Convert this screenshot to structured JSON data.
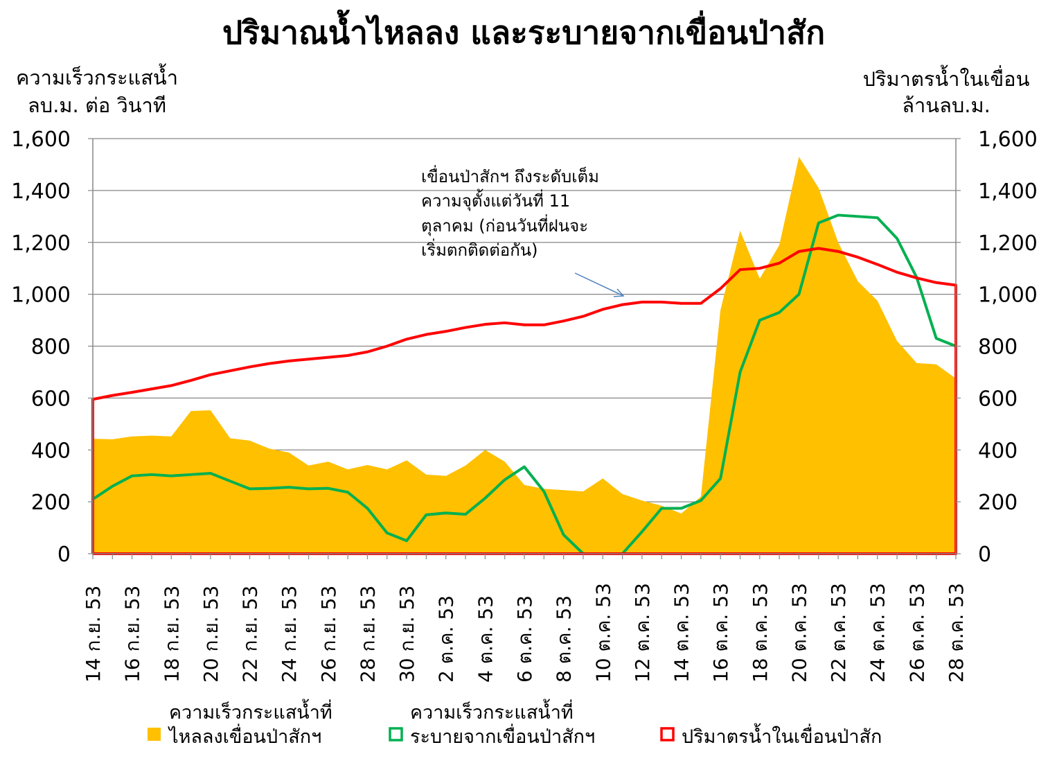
{
  "chart_data": {
    "type": "area+line",
    "title": "ปริมาณน้ำไหลลง และระบายจากเขื่อนป่าสัก",
    "y_left_label": [
      "ความเร็วกระแสน้ำ",
      "ลบ.ม. ต่อ วินาที"
    ],
    "y_right_label": [
      "ปริมาตรน้ำในเขื่อน",
      "ล้านลบ.ม."
    ],
    "ylim": [
      0,
      1600
    ],
    "y_ticks": [
      0,
      200,
      400,
      600,
      800,
      1000,
      1200,
      1400,
      1600
    ],
    "y_tick_labels": [
      "0",
      "200",
      "400",
      "600",
      "800",
      "1,000",
      "1,200",
      "1,400",
      "1,600"
    ],
    "x": [
      "14 ก.ย. 53",
      "15 ก.ย. 53",
      "16 ก.ย. 53",
      "17 ก.ย. 53",
      "18 ก.ย. 53",
      "19 ก.ย. 53",
      "20 ก.ย. 53",
      "21 ก.ย. 53",
      "22 ก.ย. 53",
      "23 ก.ย. 53",
      "24 ก.ย. 53",
      "25 ก.ย. 53",
      "26 ก.ย. 53",
      "27 ก.ย. 53",
      "28 ก.ย. 53",
      "29 ก.ย. 53",
      "30 ก.ย. 53",
      "1 ต.ค. 53",
      "2 ต.ค. 53",
      "3 ต.ค. 53",
      "4 ต.ค. 53",
      "5 ต.ค. 53",
      "6 ต.ค. 53",
      "7 ต.ค. 53",
      "8 ต.ค. 53",
      "9 ต.ค. 53",
      "10 ต.ค. 53",
      "11 ต.ค. 53",
      "12 ต.ค. 53",
      "13 ต.ค. 53",
      "14 ต.ค. 53",
      "15 ต.ค. 53",
      "16 ต.ค. 53",
      "17 ต.ค. 53",
      "18 ต.ค. 53",
      "19 ต.ค. 53",
      "20 ต.ค. 53",
      "21 ต.ค. 53",
      "22 ต.ค. 53",
      "23 ต.ค. 53",
      "24 ต.ค. 53",
      "25 ต.ค. 53",
      "26 ต.ค. 53",
      "27 ต.ค. 53",
      "28 ต.ค. 53"
    ],
    "x_tick_labels": [
      "14 ก.ย. 53",
      "16 ก.ย. 53",
      "18 ก.ย. 53",
      "20 ก.ย. 53",
      "22 ก.ย. 53",
      "24 ก.ย. 53",
      "26 ก.ย. 53",
      "28 ก.ย. 53",
      "30 ก.ย. 53",
      "2 ต.ค. 53",
      "4 ต.ค. 53",
      "6 ต.ค. 53",
      "8 ต.ค. 53",
      "10 ต.ค. 53",
      "12 ต.ค. 53",
      "14 ต.ค. 53",
      "16 ต.ค. 53",
      "18 ต.ค. 53",
      "20 ต.ค. 53",
      "22 ต.ค. 53",
      "24 ต.ค. 53",
      "26 ต.ค. 53",
      "28 ต.ค. 53"
    ],
    "series": [
      {
        "name": "ความเร็วกระแสน้ำที่ ไหลลงเขื่อนป่าสักฯ",
        "legend_lines": [
          "ความเร็วกระแสน้ำที่",
          "ไหลลงเขื่อนป่าสักฯ"
        ],
        "type": "area",
        "color": "#FFC000",
        "values": [
          443,
          441,
          452,
          455,
          452,
          550,
          553,
          445,
          436,
          405,
          390,
          340,
          355,
          325,
          342,
          325,
          360,
          305,
          300,
          340,
          400,
          355,
          265,
          250,
          245,
          240,
          290,
          230,
          205,
          185,
          155,
          220,
          940,
          1245,
          1060,
          1190,
          1530,
          1410,
          1200,
          1050,
          975,
          820,
          735,
          730,
          675
        ]
      },
      {
        "name": "ความเร็วกระแสน้ำที่ ระบายจากเขื่อนป่าสักฯ",
        "legend_lines": [
          "ความเร็วกระแสน้ำที่",
          "ระบายจากเขื่อนป่าสักฯ"
        ],
        "type": "line",
        "color": "#00B050",
        "values": [
          210,
          260,
          300,
          305,
          300,
          305,
          310,
          280,
          250,
          252,
          256,
          250,
          252,
          237,
          175,
          80,
          50,
          150,
          157,
          152,
          214,
          285,
          335,
          240,
          73,
          0,
          0,
          0,
          85,
          175,
          175,
          205,
          290,
          700,
          900,
          930,
          1000,
          1275,
          1305,
          1300,
          1295,
          1215,
          1065,
          830,
          800
        ]
      },
      {
        "name": "ปริมาตรน้ำในเขื่อนป่าสัก",
        "legend_lines": [
          "ปริมาตรน้ำในเขื่อนป่าสัก"
        ],
        "type": "line",
        "axis": "right",
        "color": "#FF0000",
        "values": [
          595,
          610,
          622,
          635,
          648,
          668,
          690,
          705,
          720,
          733,
          743,
          750,
          757,
          764,
          778,
          800,
          827,
          845,
          857,
          872,
          884,
          890,
          882,
          882,
          897,
          915,
          942,
          960,
          970,
          970,
          965,
          965,
          1022,
          1095,
          1100,
          1120,
          1165,
          1177,
          1165,
          1143,
          1115,
          1085,
          1063,
          1045,
          1035
        ]
      }
    ],
    "annotation": {
      "lines": [
        "เขื่อนป่าสักฯ ถึงระดับเต็ม",
        "ความจุตั้งแต่วันที่ 11",
        "ตุลาคม (ก่อนวันที่ฝนจะ",
        "เริ่มตกติดต่อกัน)"
      ],
      "arrow_color": "#4F81BD"
    },
    "grid": true,
    "legend_position": "bottom"
  }
}
